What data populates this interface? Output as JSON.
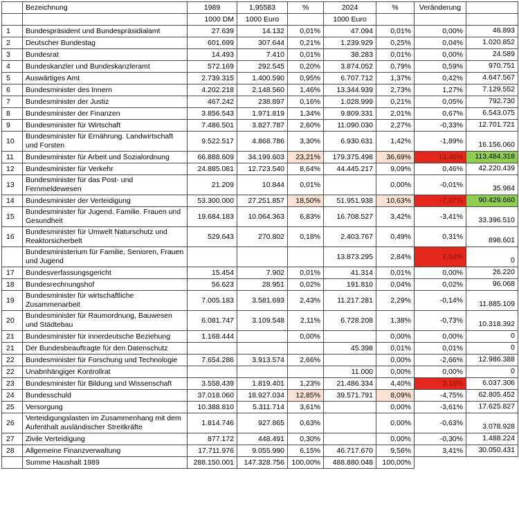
{
  "table": {
    "header": {
      "num": "",
      "bezeichnung": "Bezeichnung",
      "year_1989": "1989",
      "factor": "1,95583",
      "pct_1989": "%",
      "year_2024": "2024",
      "pct_2024": "%",
      "veraenderung": "Veränderung",
      "last": "",
      "unit_dm": "1000 DM",
      "unit_euro_1989": "1000 Euro",
      "unit_euro_2024": "1000 Euro"
    },
    "colors": {
      "highlight_peach": "#fbe1d3",
      "highlight_red": "#e2261c",
      "highlight_red_text": "#8d1208",
      "highlight_green": "#8fce50",
      "border": "#4a4a4a",
      "text": "#000000"
    },
    "rows": [
      {
        "num": "1",
        "name": "Bundespräsident und Bundespräsidialamt",
        "dm": "27.639",
        "eur": "14.132",
        "p1": "0,01%",
        "e24": "47.094",
        "p2": "0,01%",
        "chg": "0,00%",
        "diff": "46.893"
      },
      {
        "num": "2",
        "name": "Deutscher Bundestag",
        "dm": "601.699",
        "eur": "307.644",
        "p1": "0,21%",
        "e24": "1.239.929",
        "p2": "0,25%",
        "chg": "0,04%",
        "diff": "1.020.852"
      },
      {
        "num": "3",
        "name": "Bundesrat",
        "dm": "14.493",
        "eur": "7.410",
        "p1": "0,01%",
        "e24": "38.283",
        "p2": "0,01%",
        "chg": "0,00%",
        "diff": "24.589"
      },
      {
        "num": "4",
        "name": "Bundeskanzler und Bundeskanzleramt",
        "dm": "572.169",
        "eur": "292.545",
        "p1": "0,20%",
        "e24": "3.874.052",
        "p2": "0,79%",
        "chg": "0,59%",
        "diff": "970.751"
      },
      {
        "num": "5",
        "name": "Auswärtiges Amt",
        "dm": "2.739.315",
        "eur": "1.400.590",
        "p1": "0,95%",
        "e24": "6.707.712",
        "p2": "1,37%",
        "chg": "0,42%",
        "diff": "4.647.567"
      },
      {
        "num": "6",
        "name": "Bundesminister des Innern",
        "dm": "4.202.218",
        "eur": "2.148.560",
        "p1": "1,46%",
        "e24": "13.344.939",
        "p2": "2,73%",
        "chg": "1,27%",
        "diff": "7.129.552"
      },
      {
        "num": "7",
        "name": "Bundesminister der Justiz",
        "dm": "467.242",
        "eur": "238.897",
        "p1": "0,16%",
        "e24": "1.028.999",
        "p2": "0,21%",
        "chg": "0,05%",
        "diff": "792.730"
      },
      {
        "num": "8",
        "name": "Bundesminister der Finanzen",
        "dm": "3.856.543",
        "eur": "1.971.819",
        "p1": "1,34%",
        "e24": "9.809.331",
        "p2": "2,01%",
        "chg": "0,67%",
        "diff": "6.543.075"
      },
      {
        "num": "9",
        "name": "Bundesminister für Wirtschaft",
        "dm": "7.486.501",
        "eur": "3.827.787",
        "p1": "2,60%",
        "e24": "11.090.030",
        "p2": "2,27%",
        "chg": "-0,33%",
        "diff": "12.701.721"
      },
      {
        "num": "10",
        "name": "Bundesminister für Ernährung. Landwirtschaft und Forsten",
        "dm": "9.522.517",
        "eur": "4.868.786",
        "p1": "3,30%",
        "e24": "6.930.631",
        "p2": "1,42%",
        "chg": "-1,89%",
        "diff": "16.156.060"
      },
      {
        "num": "11",
        "name": "Bundesminister für Arbeit und Sozialordnung",
        "dm": "66.888.609",
        "eur": "34.199.603",
        "p1": "23,21%",
        "e24": "179.375.498",
        "p2": "36,69%",
        "chg": "13,48%",
        "diff": "113.484.318",
        "hl": {
          "p1": "peach",
          "p2": "peach",
          "chg": "red",
          "diff": "green"
        }
      },
      {
        "num": "12",
        "name": "Bundesminister für Verkehr",
        "dm": "24.885.081",
        "eur": "12.723.540",
        "p1": "8,64%",
        "e24": "44.445.217",
        "p2": "9,09%",
        "chg": "0,46%",
        "diff": "42.220.439"
      },
      {
        "num": "13",
        "name": "Bundesminister für das Post- und Fernmeldewesen",
        "dm": "21.209",
        "eur": "10.844",
        "p1": "0,01%",
        "e24": "",
        "p2": "0,00%",
        "chg": "-0,01%",
        "diff": "35.984"
      },
      {
        "num": "14",
        "name": "Bundesminister der Verteidigung",
        "dm": "53.300.000",
        "eur": "27.251.857",
        "p1": "18,50%",
        "e24": "51.951.938",
        "p2": "10,63%",
        "chg": "-7,87%",
        "diff": "90.429.660",
        "hl": {
          "p1": "peach",
          "p2": "peach",
          "chg": "red",
          "diff": "green"
        }
      },
      {
        "num": "15",
        "name": "Bundesminister für Jugend. Familie. Frauen und Gesundheit",
        "dm": "19.684.183",
        "eur": "10.064.363",
        "p1": "6,83%",
        "e24": "16.708.527",
        "p2": "3,42%",
        "chg": "-3,41%",
        "diff": "33.396.510"
      },
      {
        "num": "16",
        "name": "Bundesminister für Umwelt Naturschutz und Reaktorsicherbelt",
        "dm": "529.643",
        "eur": "270.802",
        "p1": "0,18%",
        "e24": "2.403.767",
        "p2": "0,49%",
        "chg": "0,31%",
        "diff": "898.601"
      },
      {
        "num": "",
        "name": "Bundesministerium für Familie, Senioren, Frauen und Jugend",
        "dm": "",
        "eur": "",
        "p1": "",
        "e24": "13.873.295",
        "p2": "2,84%",
        "chg": "2,84%",
        "diff": "0",
        "hl": {
          "chg": "red"
        }
      },
      {
        "num": "17",
        "name": "Bundesverfassungsgericht",
        "dm": "15.454",
        "eur": "7.902",
        "p1": "0,01%",
        "e24": "41.314",
        "p2": "0,01%",
        "chg": "0,00%",
        "diff": "26.220"
      },
      {
        "num": "18",
        "name": "Bundesrechnungshof",
        "dm": "56.623",
        "eur": "28.951",
        "p1": "0,02%",
        "e24": "191.810",
        "p2": "0,04%",
        "chg": "0,02%",
        "diff": "96.068"
      },
      {
        "num": "19",
        "name": "Bundesminister für wirtschaftliche Zusammenarbeit",
        "dm": "7.005.183",
        "eur": "3.581.693",
        "p1": "2,43%",
        "e24": "11.217.281",
        "p2": "2,29%",
        "chg": "-0,14%",
        "diff": "11.885.109"
      },
      {
        "num": "20",
        "name": "Bundesminister für Raumordnung, Bauwesen und Städtebau",
        "dm": "6.081.747",
        "eur": "3.109.548",
        "p1": "2,11%",
        "e24": "6.728.208",
        "p2": "1,38%",
        "chg": "-0,73%",
        "diff": "10.318.392"
      },
      {
        "num": "21",
        "name": "Bundesminister für innerdeutsche Beziehung",
        "dm": "1.168.444",
        "eur": "",
        "p1": "0,00%",
        "e24": "",
        "p2": "0,00%",
        "chg": "0,00%",
        "diff": "0"
      },
      {
        "num": "21",
        "name": "Der Bundesbeauftragte für den Datenschutz",
        "dm": "",
        "eur": "",
        "p1": "",
        "e24": "45.398",
        "p2": "0,01%",
        "chg": "0,01%",
        "diff": "0"
      },
      {
        "num": "22",
        "name": "Bundesminister für Forschung und Technologie",
        "dm": "7.654.286",
        "eur": "3.913.574",
        "p1": "2,66%",
        "e24": "",
        "p2": "0,00%",
        "chg": "-2,66%",
        "diff": "12.986.388"
      },
      {
        "num": "22",
        "name": "Unabnhängiger Kontrollrat",
        "dm": "",
        "eur": "",
        "p1": "",
        "e24": "11.000",
        "p2": "0,00%",
        "chg": "0,00%",
        "diff": "0"
      },
      {
        "num": "23",
        "name": "Bundesminister für Bildung und Wissenschaft",
        "dm": "3.558.439",
        "eur": "1.819.401",
        "p1": "1,23%",
        "e24": "21.486.334",
        "p2": "4,40%",
        "chg": "3,16%",
        "diff": "6.037.306",
        "hl": {
          "chg": "red"
        }
      },
      {
        "num": "24",
        "name": "Bundesschuld",
        "dm": "37.018.060",
        "eur": "18.927.034",
        "p1": "12,85%",
        "e24": "39.571.791",
        "p2": "8,09%",
        "chg": "-4,75%",
        "diff": "62.805.452",
        "hl": {
          "p1": "peach",
          "p2": "peach"
        }
      },
      {
        "num": "25",
        "name": "Versorgung",
        "dm": "10.388.810",
        "eur": "5.311.714",
        "p1": "3,61%",
        "e24": "",
        "p2": "0,00%",
        "chg": "-3,61%",
        "diff": "17.625.827"
      },
      {
        "num": "26",
        "name": "Verteidigungslasten im Zusammenhang mit dem Aufenthalt ausländischer Streitkräfte",
        "dm": "1.814.746",
        "eur": "927.865",
        "p1": "0,63%",
        "e24": "",
        "p2": "0,00%",
        "chg": "-0,63%",
        "diff": "3.078.928"
      },
      {
        "num": "27",
        "name": "Zivile Verteidigung",
        "dm": "877.172",
        "eur": "448.491",
        "p1": "0,30%",
        "e24": "",
        "p2": "0,00%",
        "chg": "-0,30%",
        "diff": "1.488.224"
      },
      {
        "num": "28",
        "name": "Allgemeine Finanzverwaltung",
        "dm": "17.711.976",
        "eur": "9.055.990",
        "p1": "6,15%",
        "e24": "46.717.670",
        "p2": "9,56%",
        "chg": "3,41%",
        "diff": "30.050.431"
      },
      {
        "num": "",
        "name": "Summe Haushalt 1989",
        "dm": "288.150.001",
        "eur": "147.328.756",
        "p1": "100,00%",
        "e24": "488.880.048",
        "p2": "100,00%",
        "chg": "",
        "diff": "",
        "no_tail": true
      }
    ]
  }
}
